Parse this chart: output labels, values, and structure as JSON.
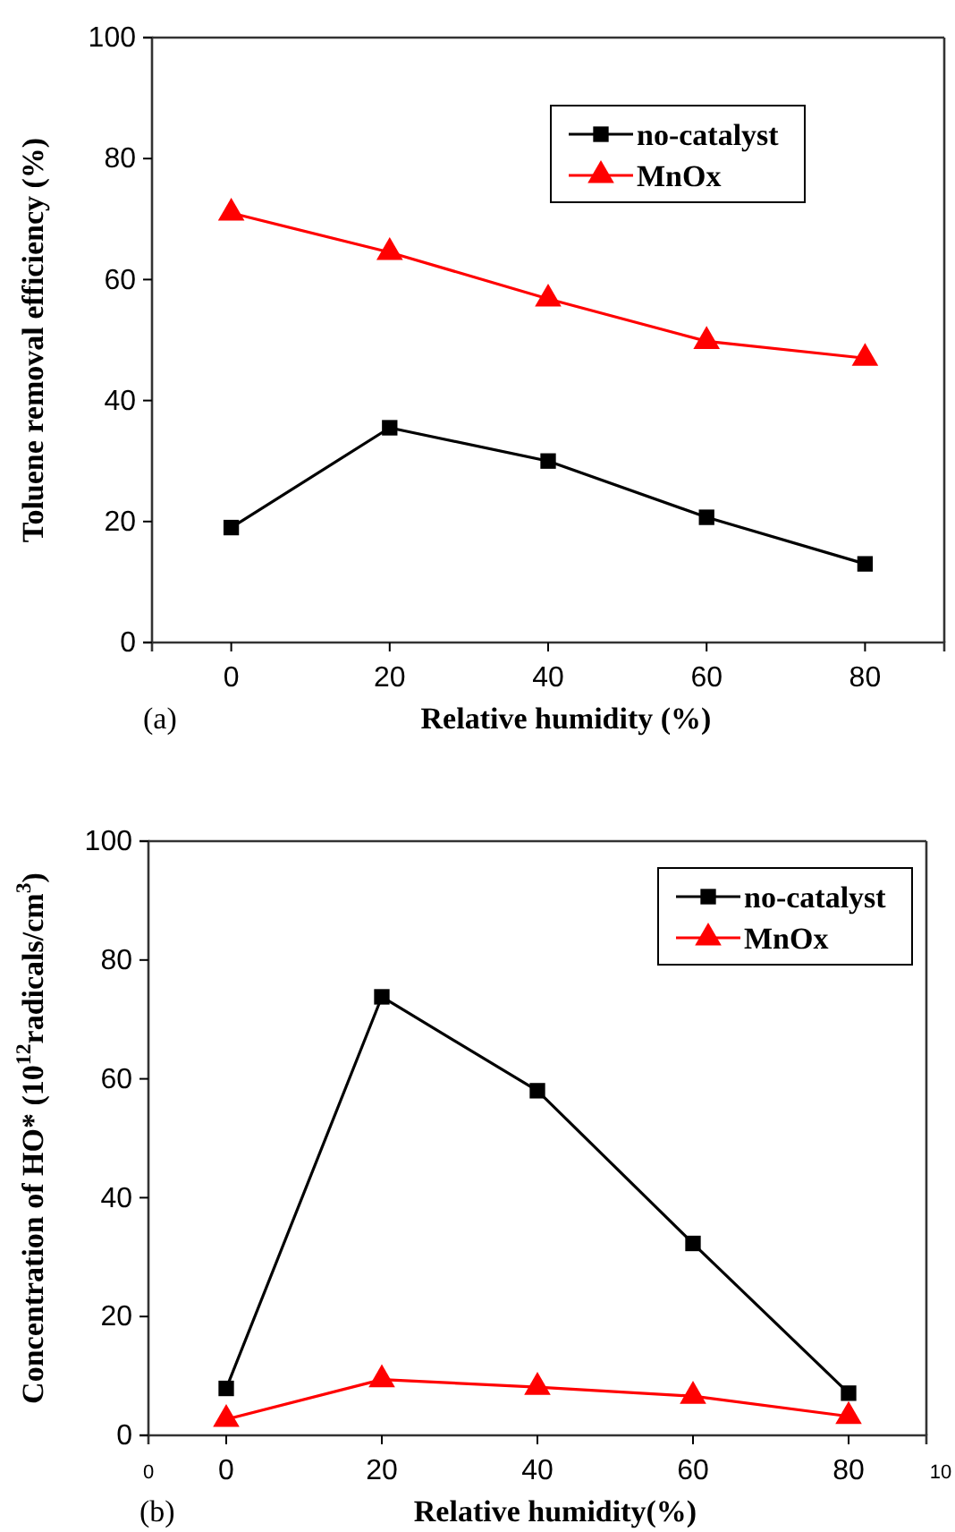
{
  "chart_data": [
    {
      "type": "line",
      "xlabel": "Relative humidity (%)",
      "ylabel": "Toluene removal efficiency (%)",
      "annotations": [
        "(a)"
      ],
      "x": [
        0,
        20,
        40,
        60,
        80
      ],
      "xlim": [
        -10,
        90
      ],
      "xticks": [
        0,
        20,
        40,
        60,
        80
      ],
      "ylim": [
        0,
        100
      ],
      "yticks": [
        0,
        20,
        40,
        60,
        80,
        100
      ],
      "legend": "top right",
      "grid": false,
      "series": [
        {
          "name": "no-catalyst",
          "color": "#000000",
          "marker": "square",
          "values": [
            19,
            35.5,
            30,
            20.7,
            13
          ]
        },
        {
          "name": "MnOx",
          "color": "#ff0000",
          "marker": "triangle",
          "values": [
            71,
            64.5,
            56.8,
            49.8,
            47
          ]
        }
      ]
    },
    {
      "type": "line",
      "xlabel": "Relative humidity(%)",
      "ylabel": "Concentration of HO* (10$^{12}$radicals/cm$^{3}$)",
      "annotations": [
        "(b)",
        "0",
        "10"
      ],
      "x": [
        0,
        20,
        40,
        60,
        80
      ],
      "xlim": [
        -10,
        90
      ],
      "xticks": [
        0,
        20,
        40,
        60,
        80
      ],
      "ylim": [
        0,
        100
      ],
      "yticks": [
        0,
        20,
        40,
        60,
        80,
        100
      ],
      "legend": "top right",
      "grid": false,
      "series": [
        {
          "name": "no-catalyst",
          "color": "#000000",
          "marker": "square",
          "values": [
            7.9,
            73.8,
            58,
            32.3,
            7.1
          ]
        },
        {
          "name": "MnOx",
          "color": "#ff0000",
          "marker": "triangle",
          "values": [
            2.7,
            9.4,
            8.1,
            6.6,
            3.2
          ]
        }
      ]
    }
  ]
}
